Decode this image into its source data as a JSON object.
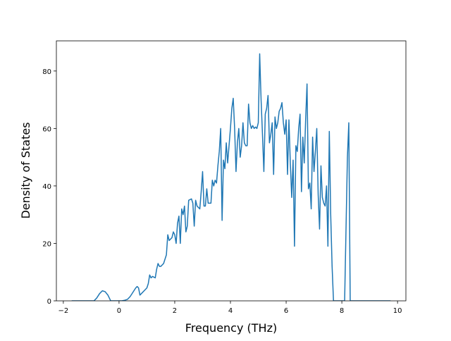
{
  "chart_data": {
    "type": "line",
    "xlabel": "Frequency (THz)",
    "ylabel": "Density of States",
    "color": "#1f77b4",
    "x": [
      -1.7,
      -0.9,
      -0.8,
      -0.7,
      -0.6,
      -0.5,
      -0.4,
      -0.3,
      0.1,
      0.2,
      0.3,
      0.4,
      0.5,
      0.6,
      0.65,
      0.7,
      0.75,
      0.8,
      0.9,
      1.0,
      1.05,
      1.1,
      1.15,
      1.2,
      1.3,
      1.35,
      1.4,
      1.45,
      1.5,
      1.6,
      1.7,
      1.75,
      1.8,
      1.9,
      1.95,
      2.0,
      2.05,
      2.1,
      2.15,
      2.2,
      2.25,
      2.3,
      2.35,
      2.4,
      2.45,
      2.5,
      2.6,
      2.65,
      2.7,
      2.75,
      2.8,
      2.9,
      2.95,
      3.0,
      3.05,
      3.1,
      3.15,
      3.2,
      3.3,
      3.35,
      3.4,
      3.45,
      3.5,
      3.55,
      3.6,
      3.65,
      3.7,
      3.75,
      3.8,
      3.85,
      3.9,
      4.0,
      4.05,
      4.1,
      4.15,
      4.2,
      4.25,
      4.3,
      4.35,
      4.4,
      4.45,
      4.5,
      4.55,
      4.6,
      4.65,
      4.7,
      4.75,
      4.8,
      4.85,
      4.9,
      4.95,
      5.0,
      5.05,
      5.1,
      5.15,
      5.2,
      5.25,
      5.3,
      5.35,
      5.4,
      5.45,
      5.5,
      5.55,
      5.6,
      5.65,
      5.7,
      5.75,
      5.8,
      5.85,
      5.9,
      5.95,
      6.0,
      6.05,
      6.1,
      6.15,
      6.2,
      6.25,
      6.3,
      6.35,
      6.4,
      6.45,
      6.5,
      6.55,
      6.6,
      6.65,
      6.7,
      6.75,
      6.8,
      6.85,
      6.9,
      6.95,
      7.0,
      7.05,
      7.1,
      7.15,
      7.2,
      7.25,
      7.3,
      7.35,
      7.4,
      7.45,
      7.5,
      7.55,
      7.6,
      7.65,
      7.7,
      7.8,
      7.9,
      8.1,
      8.2,
      8.25,
      8.3,
      9.75
    ],
    "values": [
      0,
      0,
      1,
      2.5,
      3.5,
      3.2,
      2,
      0,
      0,
      0.2,
      0.5,
      1.5,
      3,
      4.5,
      5,
      4.5,
      2,
      2.5,
      3.5,
      4.5,
      6,
      9,
      8,
      8.5,
      8,
      11,
      13,
      12,
      12,
      13,
      16,
      23,
      21,
      22,
      24,
      23,
      20,
      27,
      29.5,
      20,
      32,
      30,
      33,
      24,
      26,
      35,
      35.5,
      34,
      26,
      35,
      33,
      32,
      38,
      45,
      33,
      33,
      39,
      34,
      34,
      42,
      40,
      42,
      41,
      47,
      52,
      60,
      28,
      49,
      46,
      55,
      48,
      60,
      67,
      70.5,
      60,
      45,
      55,
      60,
      50,
      54,
      62,
      55,
      54,
      54,
      68.5,
      62,
      60,
      61,
      60,
      60.5,
      60,
      62,
      86,
      70,
      58,
      45,
      65,
      67,
      71.5,
      55,
      58,
      62,
      44,
      64,
      60,
      62,
      66,
      67,
      69,
      62,
      58,
      63,
      44,
      63,
      48,
      36,
      49,
      19,
      54,
      52,
      60,
      65,
      38,
      57,
      48,
      63,
      75.5,
      39,
      41,
      32,
      57,
      45,
      52,
      60,
      37,
      25,
      47,
      36,
      34,
      33,
      40,
      19,
      59,
      30,
      12,
      0,
      0,
      0,
      0,
      50,
      62,
      0,
      0
    ],
    "xlim": [
      -2.25,
      10.3
    ],
    "ylim": [
      0,
      90.5
    ],
    "xticks": [
      {
        "value": -2,
        "label": "−2"
      },
      0,
      2,
      4,
      6,
      8,
      10
    ],
    "yticks": [
      0,
      20,
      40,
      60,
      80
    ]
  }
}
